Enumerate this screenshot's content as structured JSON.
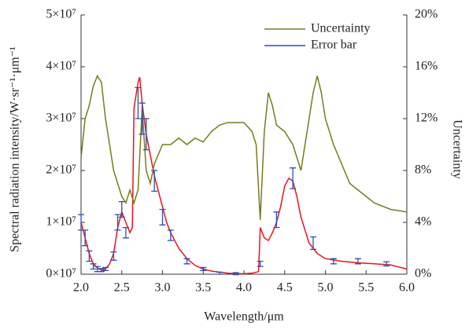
{
  "chart_data": {
    "type": "line",
    "x_label": "Wavelength/μm",
    "y_label": "Spectral radiation intensity/W·sr⁻¹·μm⁻¹",
    "y2_label": "Uncertainty",
    "xlim": [
      2,
      6
    ],
    "xticks": [
      {
        "value": 2,
        "label": "2.0"
      },
      {
        "value": 2.5,
        "label": "2.5"
      },
      {
        "value": 3,
        "label": "3.0"
      },
      {
        "value": 3.5,
        "label": "3.5"
      },
      {
        "value": 4,
        "label": "4.0"
      },
      {
        "value": 4.5,
        "label": "4.5"
      },
      {
        "value": 5,
        "label": "5.0"
      },
      {
        "value": 5.5,
        "label": "5.5"
      },
      {
        "value": 6,
        "label": "6.0"
      }
    ],
    "ylim": [
      0,
      50000000.0
    ],
    "yticks": [
      {
        "value": 0,
        "label": "0×10⁷"
      },
      {
        "value": 10000000.0,
        "label": "1×10⁷"
      },
      {
        "value": 20000000.0,
        "label": "2×10⁷"
      },
      {
        "value": 30000000.0,
        "label": "3×10⁷"
      },
      {
        "value": 40000000.0,
        "label": "4×10⁷"
      },
      {
        "value": 50000000.0,
        "label": "5×10⁷"
      }
    ],
    "y2lim": [
      0,
      20
    ],
    "y2ticks": [
      {
        "value": 0,
        "label": "0%"
      },
      {
        "value": 4,
        "label": "4%"
      },
      {
        "value": 8,
        "label": "8%"
      },
      {
        "value": 12,
        "label": "12%"
      },
      {
        "value": 16,
        "label": "16%"
      },
      {
        "value": 20,
        "label": "20%"
      }
    ],
    "legend": "upper right",
    "series": [
      {
        "color": "#e8141c",
        "x": [
          2.0,
          2.05,
          2.1,
          2.15,
          2.2,
          2.25,
          2.3,
          2.35,
          2.4,
          2.45,
          2.5,
          2.55,
          2.6,
          2.63,
          2.65,
          2.7,
          2.72,
          2.75,
          2.8,
          2.85,
          2.9,
          2.95,
          3.0,
          3.05,
          3.1,
          3.2,
          3.3,
          3.4,
          3.5,
          3.6,
          3.7,
          3.8,
          3.9,
          4.0,
          4.1,
          4.18,
          4.2,
          4.25,
          4.3,
          4.35,
          4.4,
          4.45,
          4.5,
          4.55,
          4.6,
          4.65,
          4.7,
          4.8,
          4.9,
          5.0,
          5.2,
          5.4,
          5.6,
          5.8,
          6.0
        ],
        "values": [
          10000000.0,
          7000000.0,
          4000000.0,
          2000000.0,
          1200000.0,
          800000.0,
          1000000.0,
          2000000.0,
          4000000.0,
          9000000.0,
          12000000.0,
          10000000.0,
          8000000.0,
          9000000.0,
          32000000.0,
          37000000.0,
          38000000.0,
          33000000.0,
          27000000.0,
          23000000.0,
          19000000.0,
          16000000.0,
          13000000.0,
          10000000.0,
          8000000.0,
          5000000.0,
          3000000.0,
          1700000.0,
          1000000.0,
          600000.0,
          400000.0,
          200000.0,
          100000.0,
          100000.0,
          200000.0,
          500000.0,
          9000000.0,
          7000000.0,
          6500000.0,
          8000000.0,
          10000000.0,
          13000000.0,
          17000000.0,
          18500000.0,
          18000000.0,
          15000000.0,
          11000000.0,
          6000000.0,
          4000000.0,
          3000000.0,
          2500000.0,
          2200000.0,
          2000000.0,
          1800000.0,
          1000000.0
        ]
      },
      {
        "name": "Uncertainty",
        "color": "#787a1e",
        "axis": "y2",
        "x": [
          2.0,
          2.05,
          2.1,
          2.15,
          2.2,
          2.25,
          2.3,
          2.35,
          2.4,
          2.45,
          2.5,
          2.55,
          2.6,
          2.65,
          2.7,
          2.75,
          2.8,
          2.85,
          2.9,
          3.0,
          3.1,
          3.2,
          3.3,
          3.4,
          3.5,
          3.6,
          3.7,
          3.8,
          3.9,
          4.0,
          4.1,
          4.15,
          4.2,
          4.25,
          4.3,
          4.35,
          4.4,
          4.5,
          4.6,
          4.7,
          4.8,
          4.85,
          4.9,
          4.95,
          5.0,
          5.1,
          5.2,
          5.3,
          5.4,
          5.5,
          5.6,
          5.8,
          6.0
        ],
        "values": [
          9,
          12,
          13,
          14.5,
          15.3,
          14.8,
          12,
          10,
          8,
          7,
          6,
          5.5,
          6.5,
          5.5,
          6.5,
          12.8,
          8,
          7,
          8.5,
          10,
          10,
          10.5,
          10,
          10.5,
          10.2,
          11,
          11.5,
          11.7,
          11.7,
          11.7,
          11,
          10,
          4.2,
          11,
          14,
          13,
          11.5,
          11,
          10,
          8,
          12,
          14,
          15.3,
          14,
          12,
          10,
          8.5,
          7,
          6.5,
          6,
          5.5,
          5,
          4.8
        ]
      },
      {
        "name": "Error bar",
        "color": "#2a4fb8",
        "x": [
          2.0,
          2.05,
          2.1,
          2.15,
          2.2,
          2.25,
          2.3,
          2.4,
          2.45,
          2.5,
          2.55,
          2.7,
          2.75,
          2.8,
          2.9,
          3.0,
          3.1,
          3.3,
          3.5,
          3.7,
          3.9,
          4.2,
          4.4,
          4.6,
          4.85,
          5.1,
          5.4,
          5.75
        ],
        "values": [
          10000000.0,
          7000000.0,
          3500000.0,
          1500000.0,
          1000000.0,
          800000.0,
          1000000.0,
          3500000.0,
          10000000.0,
          12500000.0,
          8000000.0,
          33000000.0,
          30000000.0,
          27000000.0,
          18000000.0,
          11000000.0,
          7500000.0,
          2500000.0,
          1000000.0,
          200000.0,
          100000.0,
          2000000.0,
          10500000.0,
          18500000.0,
          6000000.0,
          2500000.0,
          2500000.0,
          2000000.0
        ],
        "errors": [
          1500000.0,
          1500000.0,
          1000000.0,
          500000.0,
          500000.0,
          300000.0,
          300000.0,
          800000.0,
          1500000.0,
          1500000.0,
          1000000.0,
          3000000.0,
          3000000.0,
          3000000.0,
          2000000.0,
          1500000.0,
          1000000.0,
          500000.0,
          300000.0,
          200000.0,
          200000.0,
          500000.0,
          1500000.0,
          2000000.0,
          1200000.0,
          500000.0,
          500000.0,
          400000.0
        ]
      }
    ]
  }
}
